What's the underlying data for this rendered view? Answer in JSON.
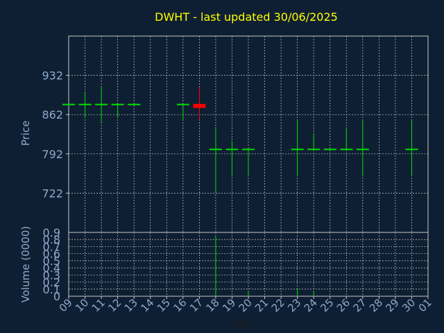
{
  "chart_data": {
    "type": "candlestick",
    "title": "DWHT - last updated 30/06/2025",
    "price_axis": {
      "label": "Price",
      "ylim": [
        652,
        1002
      ],
      "ticks": [
        722,
        792,
        862,
        932
      ]
    },
    "volume_axis": {
      "label": "Volume (0000)",
      "ylim": [
        0,
        0.9
      ],
      "ticks": [
        0,
        0.1,
        0.2,
        0.3,
        0.4,
        0.5,
        0.6,
        0.7,
        0.8,
        0.9
      ],
      "tick_labels": [
        "0",
        "0.1",
        "0.2",
        "0.3",
        "0.4",
        "0.5",
        "0.6",
        "0.7",
        "0.8",
        "0.9"
      ]
    },
    "x_axis": {
      "label": "Day",
      "tick_labels": [
        "09",
        "10",
        "11",
        "12",
        "13",
        "14",
        "15",
        "16",
        "17",
        "18",
        "19",
        "20",
        "21",
        "22",
        "23",
        "24",
        "25",
        "26",
        "27",
        "28",
        "29",
        "30",
        "01"
      ]
    },
    "grid": true,
    "colors": {
      "background": "#0f1f33",
      "grid": "#c8c8c8",
      "title": "#ffff00",
      "axis_text": "#8fa9c9",
      "up": "#00e000",
      "down": "#ff0000"
    },
    "bars": [
      {
        "day": "09",
        "open": 880,
        "high": 880,
        "low": 880,
        "close": 880,
        "volume": 0
      },
      {
        "day": "10",
        "open": 880,
        "high": 901,
        "low": 856,
        "close": 880,
        "volume": 0.001
      },
      {
        "day": "11",
        "open": 880,
        "high": 912,
        "low": 849,
        "close": 880,
        "volume": 0.001
      },
      {
        "day": "12",
        "open": 880,
        "high": 880,
        "low": 857,
        "close": 880,
        "volume": 0.001
      },
      {
        "day": "13",
        "open": 880,
        "high": 880,
        "low": 880,
        "close": 880,
        "volume": 0
      },
      {
        "day": "16",
        "open": 880,
        "high": 880,
        "low": 851,
        "close": 880,
        "volume": 0.001
      },
      {
        "day": "17",
        "open": 881,
        "high": 911,
        "low": 853,
        "close": 874,
        "volume": 0.001
      },
      {
        "day": "18",
        "open": 800,
        "high": 840,
        "low": 724,
        "close": 800,
        "volume": 0.85
      },
      {
        "day": "19",
        "open": 800,
        "high": 815,
        "low": 752,
        "close": 800,
        "volume": 0.001
      },
      {
        "day": "20",
        "open": 800,
        "high": 800,
        "low": 752,
        "close": 800,
        "volume": 0.08
      },
      {
        "day": "23",
        "open": 800,
        "high": 852,
        "low": 752,
        "close": 800,
        "volume": 0.1
      },
      {
        "day": "24",
        "open": 800,
        "high": 828,
        "low": 800,
        "close": 800,
        "volume": 0.07
      },
      {
        "day": "25",
        "open": 800,
        "high": 800,
        "low": 800,
        "close": 800,
        "volume": 0.001
      },
      {
        "day": "26",
        "open": 800,
        "high": 837,
        "low": 800,
        "close": 800,
        "volume": 0.001
      },
      {
        "day": "27",
        "open": 800,
        "high": 851,
        "low": 752,
        "close": 800,
        "volume": 0.001
      },
      {
        "day": "30",
        "open": 800,
        "high": 851,
        "low": 752,
        "close": 800,
        "volume": 0.001
      }
    ]
  }
}
